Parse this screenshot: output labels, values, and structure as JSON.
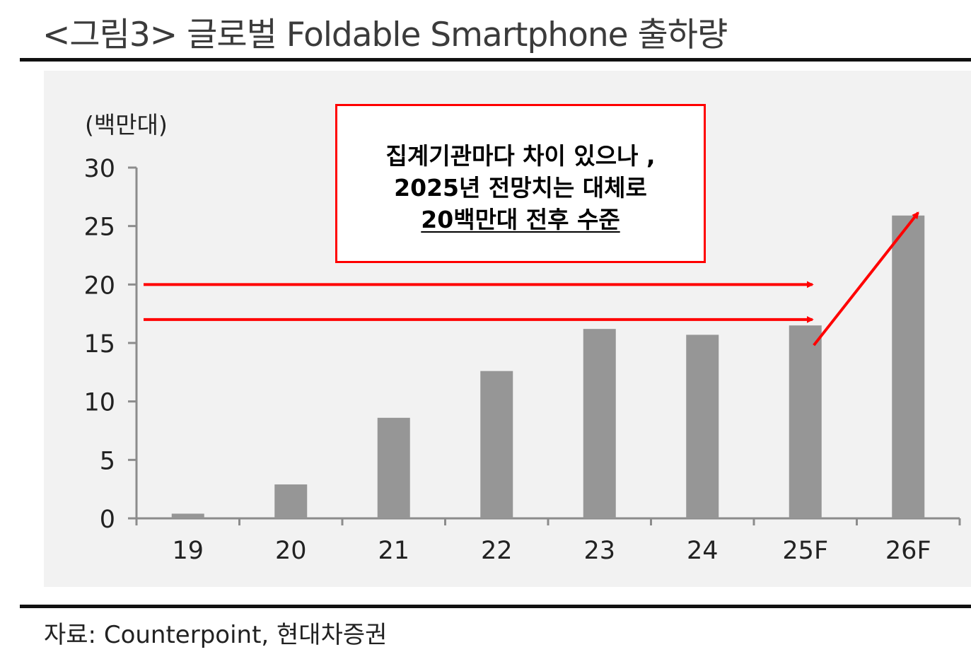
{
  "title": "<그림3> 글로벌 Foldable Smartphone 출하량",
  "source": "자료: Counterpoint, 현대차증권",
  "annotation": {
    "line1": "집계기관마다 차이 있으나 ,",
    "line2": "2025년 전망치는 대체로",
    "line3": "20백만대 전후 수준"
  },
  "chart_data": {
    "type": "bar",
    "unit_label": "(백만대)",
    "categories": [
      "19",
      "20",
      "21",
      "22",
      "23",
      "24",
      "25F",
      "26F"
    ],
    "values": [
      0.4,
      2.9,
      8.6,
      12.6,
      16.2,
      15.7,
      16.5,
      25.9
    ],
    "ylim": [
      0,
      30
    ],
    "yticks": [
      "0",
      "5",
      "10",
      "15",
      "20",
      "25",
      "30"
    ],
    "grid": false,
    "colors": {
      "bar": "#969696",
      "axis": "#8c8c8c",
      "annotation": "#ff0000"
    },
    "reference_arrows_y": [
      20,
      17
    ]
  }
}
